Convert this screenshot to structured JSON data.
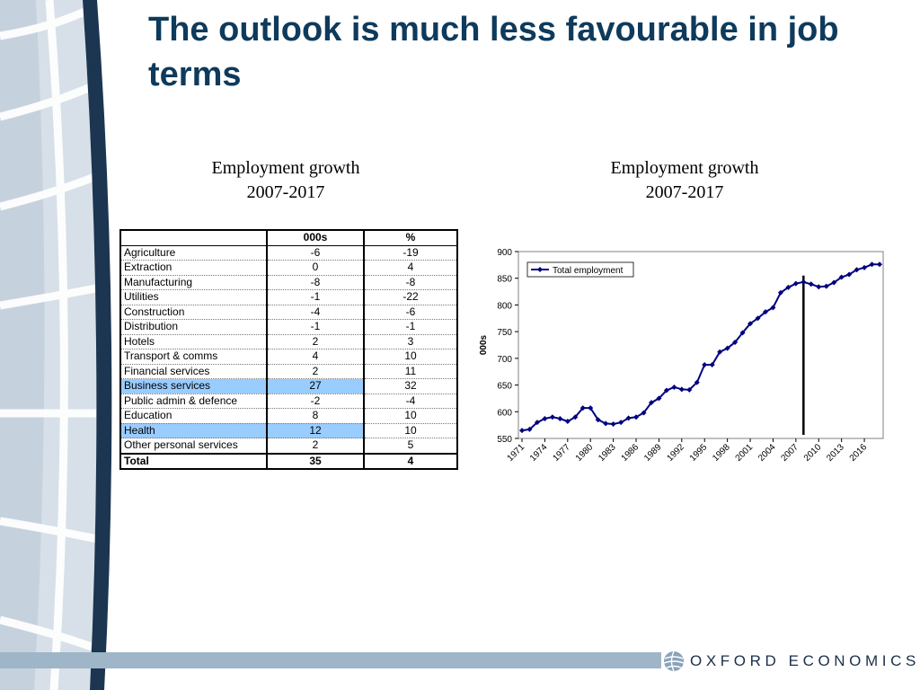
{
  "slide": {
    "title": "The outlook is much less favourable in job terms",
    "left_subtitle": [
      "Employment growth",
      "2007-2017"
    ],
    "right_subtitle": [
      "Employment growth",
      "2007-2017"
    ],
    "logo_text": "OXFORD ECONOMICS",
    "colors": {
      "title": "#0e3a5c",
      "highlight": "#99ccff",
      "line": "#000080",
      "footer_bar": "#9fb5c8"
    }
  },
  "chart_data": [
    {
      "type": "table",
      "columns": [
        "",
        "000s",
        "%"
      ],
      "rows": [
        {
          "sector": "Agriculture",
          "thousands": "-6",
          "percent": "-19"
        },
        {
          "sector": "Extraction",
          "thousands": "0",
          "percent": "4"
        },
        {
          "sector": "Manufacturing",
          "thousands": "-8",
          "percent": "-8"
        },
        {
          "sector": "Utilities",
          "thousands": "-1",
          "percent": "-22"
        },
        {
          "sector": "Construction",
          "thousands": "-4",
          "percent": "-6"
        },
        {
          "sector": "Distribution",
          "thousands": "-1",
          "percent": "-1"
        },
        {
          "sector": "Hotels",
          "thousands": "2",
          "percent": "3"
        },
        {
          "sector": "Transport & comms",
          "thousands": "4",
          "percent": "10"
        },
        {
          "sector": "Financial services",
          "thousands": "2",
          "percent": "11"
        },
        {
          "sector": "Business services",
          "thousands": "27",
          "percent": "32",
          "highlight": true
        },
        {
          "sector": "Public admin & defence",
          "thousands": "-2",
          "percent": "-4"
        },
        {
          "sector": "Education",
          "thousands": "8",
          "percent": "10"
        },
        {
          "sector": "Health",
          "thousands": "12",
          "percent": "10",
          "highlight": true
        },
        {
          "sector": "Other personal services",
          "thousands": "2",
          "percent": "5"
        }
      ],
      "total": {
        "sector": "Total",
        "thousands": "35",
        "percent": "4"
      }
    },
    {
      "type": "line",
      "ylabel": "000s",
      "ylim": [
        550,
        900
      ],
      "yticks": [
        550,
        600,
        650,
        700,
        750,
        800,
        850,
        900
      ],
      "xlim": [
        1971,
        2018
      ],
      "xticks": [
        1971,
        1974,
        1977,
        1980,
        1983,
        1986,
        1989,
        1992,
        1995,
        1998,
        2001,
        2004,
        2007,
        2010,
        2013,
        2016
      ],
      "grid": false,
      "legend": "top-left",
      "vertical_marker": 2008,
      "series": [
        {
          "name": "Total employment",
          "x": [
            1971,
            1972,
            1973,
            1974,
            1975,
            1976,
            1977,
            1978,
            1979,
            1980,
            1981,
            1982,
            1983,
            1984,
            1985,
            1986,
            1987,
            1988,
            1989,
            1990,
            1991,
            1992,
            1993,
            1994,
            1995,
            1996,
            1997,
            1998,
            1999,
            2000,
            2001,
            2002,
            2003,
            2004,
            2005,
            2006,
            2007,
            2008,
            2009,
            2010,
            2011,
            2012,
            2013,
            2014,
            2015,
            2016,
            2017,
            2018
          ],
          "values": [
            565,
            567,
            580,
            587,
            590,
            587,
            582,
            590,
            607,
            607,
            585,
            578,
            577,
            580,
            588,
            590,
            598,
            617,
            625,
            640,
            646,
            642,
            641,
            655,
            688,
            688,
            712,
            719,
            730,
            748,
            765,
            775,
            787,
            795,
            823,
            833,
            840,
            843,
            839,
            834,
            835,
            842,
            852,
            857,
            866,
            870,
            876,
            876
          ]
        }
      ]
    }
  ]
}
